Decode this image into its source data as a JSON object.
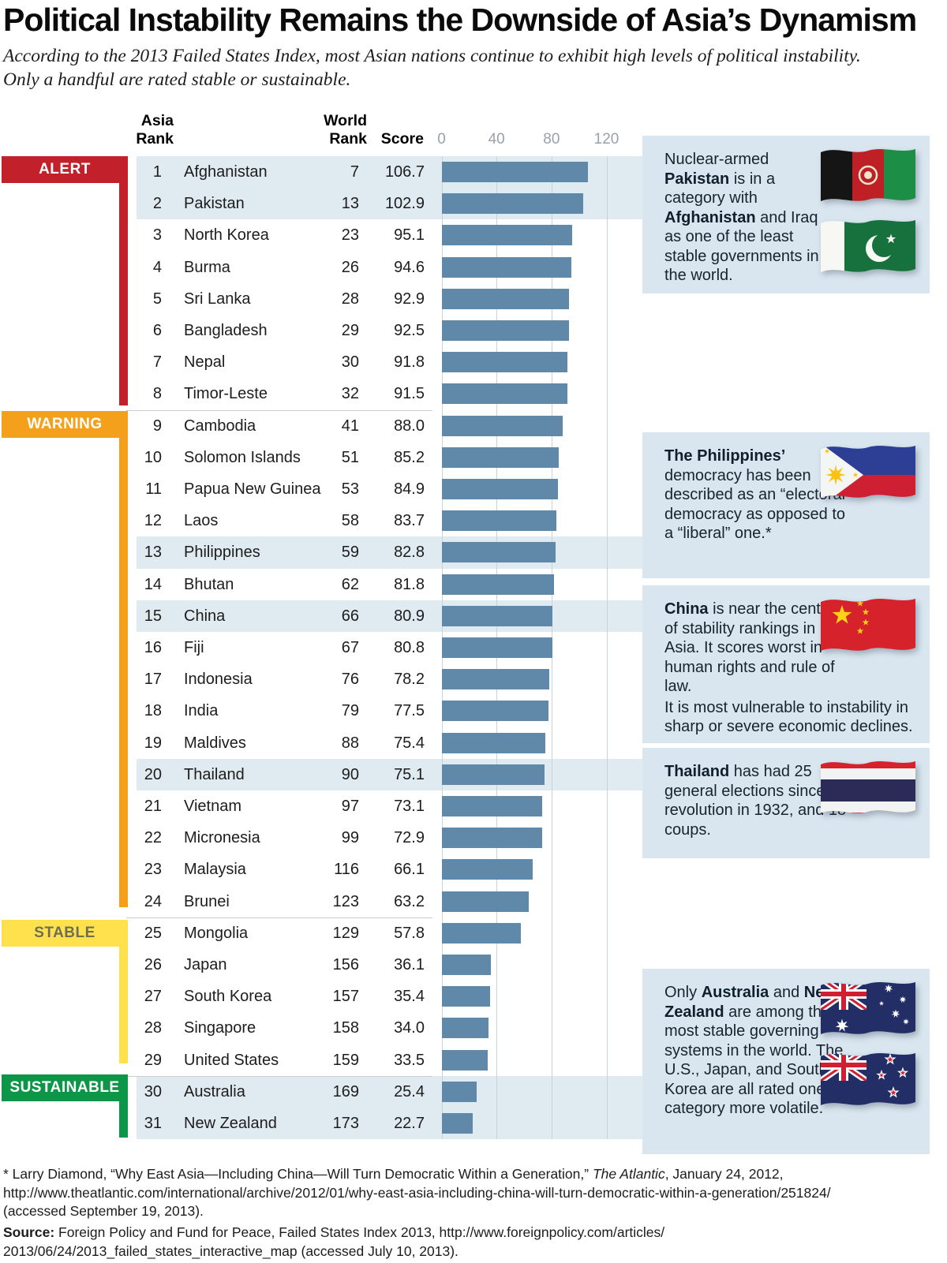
{
  "header": {
    "title": "Political Instability Remains the Downside of Asia’s Dynamism",
    "subtitle_lines": [
      "According to the 2013 Failed States Index, most Asian nations continue to exhibit high levels of political instability.",
      "Only a handful are rated stable or sustainable."
    ]
  },
  "table": {
    "col_headers": {
      "asia_line1": "Asia",
      "asia_line2": "Rank",
      "world_line1": "World",
      "world_line2": "Rank",
      "score": "Score"
    },
    "rows": [
      {
        "rank": "1",
        "country": "Afghanistan",
        "world_rank": "7",
        "score": "106.7",
        "category": "alert",
        "highlight": true
      },
      {
        "rank": "2",
        "country": "Pakistan",
        "world_rank": "13",
        "score": "102.9",
        "category": "alert",
        "highlight": true
      },
      {
        "rank": "3",
        "country": "North Korea",
        "world_rank": "23",
        "score": "95.1",
        "category": "alert",
        "highlight": false
      },
      {
        "rank": "4",
        "country": "Burma",
        "world_rank": "26",
        "score": "94.6",
        "category": "alert",
        "highlight": false
      },
      {
        "rank": "5",
        "country": "Sri Lanka",
        "world_rank": "28",
        "score": "92.9",
        "category": "alert",
        "highlight": false
      },
      {
        "rank": "6",
        "country": "Bangladesh",
        "world_rank": "29",
        "score": "92.5",
        "category": "alert",
        "highlight": false
      },
      {
        "rank": "7",
        "country": "Nepal",
        "world_rank": "30",
        "score": "91.8",
        "category": "alert",
        "highlight": false
      },
      {
        "rank": "8",
        "country": "Timor-Leste",
        "world_rank": "32",
        "score": "91.5",
        "category": "alert",
        "highlight": false
      },
      {
        "rank": "9",
        "country": "Cambodia",
        "world_rank": "41",
        "score": "88.0",
        "category": "warning",
        "highlight": false
      },
      {
        "rank": "10",
        "country": "Solomon Islands",
        "world_rank": "51",
        "score": "85.2",
        "category": "warning",
        "highlight": false
      },
      {
        "rank": "11",
        "country": "Papua New Guinea",
        "world_rank": "53",
        "score": "84.9",
        "category": "warning",
        "highlight": false
      },
      {
        "rank": "12",
        "country": "Laos",
        "world_rank": "58",
        "score": "83.7",
        "category": "warning",
        "highlight": false
      },
      {
        "rank": "13",
        "country": "Philippines",
        "world_rank": "59",
        "score": "82.8",
        "category": "warning",
        "highlight": true
      },
      {
        "rank": "14",
        "country": "Bhutan",
        "world_rank": "62",
        "score": "81.8",
        "category": "warning",
        "highlight": false
      },
      {
        "rank": "15",
        "country": "China",
        "world_rank": "66",
        "score": "80.9",
        "category": "warning",
        "highlight": true
      },
      {
        "rank": "16",
        "country": "Fiji",
        "world_rank": "67",
        "score": "80.8",
        "category": "warning",
        "highlight": false
      },
      {
        "rank": "17",
        "country": "Indonesia",
        "world_rank": "76",
        "score": "78.2",
        "category": "warning",
        "highlight": false
      },
      {
        "rank": "18",
        "country": "India",
        "world_rank": "79",
        "score": "77.5",
        "category": "warning",
        "highlight": false
      },
      {
        "rank": "19",
        "country": "Maldives",
        "world_rank": "88",
        "score": "75.4",
        "category": "warning",
        "highlight": false
      },
      {
        "rank": "20",
        "country": "Thailand",
        "world_rank": "90",
        "score": "75.1",
        "category": "warning",
        "highlight": true
      },
      {
        "rank": "21",
        "country": "Vietnam",
        "world_rank": "97",
        "score": "73.1",
        "category": "warning",
        "highlight": false
      },
      {
        "rank": "22",
        "country": "Micronesia",
        "world_rank": "99",
        "score": "72.9",
        "category": "warning",
        "highlight": false
      },
      {
        "rank": "23",
        "country": "Malaysia",
        "world_rank": "116",
        "score": "66.1",
        "category": "warning",
        "highlight": false
      },
      {
        "rank": "24",
        "country": "Brunei",
        "world_rank": "123",
        "score": "63.2",
        "category": "warning",
        "highlight": false
      },
      {
        "rank": "25",
        "country": "Mongolia",
        "world_rank": "129",
        "score": "57.8",
        "category": "stable",
        "highlight": false
      },
      {
        "rank": "26",
        "country": "Japan",
        "world_rank": "156",
        "score": "36.1",
        "category": "stable",
        "highlight": false
      },
      {
        "rank": "27",
        "country": "South Korea",
        "world_rank": "157",
        "score": "35.4",
        "category": "stable",
        "highlight": false
      },
      {
        "rank": "28",
        "country": "Singapore",
        "world_rank": "158",
        "score": "34.0",
        "category": "stable",
        "highlight": false
      },
      {
        "rank": "29",
        "country": "United States",
        "world_rank": "159",
        "score": "33.5",
        "category": "stable",
        "highlight": false
      },
      {
        "rank": "30",
        "country": "Australia",
        "world_rank": "169",
        "score": "25.4",
        "category": "sustainable",
        "highlight": true
      },
      {
        "rank": "31",
        "country": "New Zealand",
        "world_rank": "173",
        "score": "22.7",
        "category": "sustainable",
        "highlight": true
      }
    ]
  },
  "categories": [
    {
      "id": "alert",
      "label": "ALERT",
      "color": "#c2202a",
      "label_color": "#ffffff"
    },
    {
      "id": "warning",
      "label": "WARNING",
      "color": "#f5a01d",
      "label_color": "#ffffff"
    },
    {
      "id": "stable",
      "label": "STABLE",
      "color": "#ffe14e",
      "label_color": "#6e6e52"
    },
    {
      "id": "sustainable",
      "label": "SUSTAINABLE",
      "color": "#0d9648",
      "label_color": "#ffffff"
    }
  ],
  "callouts": [
    {
      "id": "pakistan-callout",
      "flags": [
        "afghanistan",
        "pakistan"
      ],
      "segments": [
        {
          "text": "Nuclear-armed ",
          "bold": false
        },
        {
          "text": "Pakistan",
          "bold": true
        },
        {
          "text": " is in a category with ",
          "bold": false
        },
        {
          "text": "Afghanistan",
          "bold": true
        },
        {
          "text": " and Iraq as one of the least stable governments in the world.",
          "bold": false
        }
      ]
    },
    {
      "id": "philippines-callout",
      "flags": [
        "philippines"
      ],
      "segments": [
        {
          "text": "The Philippines’",
          "bold": true
        },
        {
          "text": " democracy has been described as an “electoral” democracy as opposed to a “liberal” one.*",
          "bold": false
        }
      ]
    },
    {
      "id": "china-callout",
      "flags": [
        "china"
      ],
      "segments": [
        {
          "text": "China",
          "bold": true
        },
        {
          "text": " is near the center of stability rankings in Asia. It scores worst in human rights and rule of law.",
          "bold": false
        }
      ],
      "segments2": [
        {
          "text": "It is most vulnerable to instability in sharp or severe economic declines.",
          "bold": false
        }
      ]
    },
    {
      "id": "thailand-callout",
      "flags": [
        "thailand"
      ],
      "segments": [
        {
          "text": "Thailand",
          "bold": true
        },
        {
          "text": " has had 25 general elections since its revolution in 1932, and 18 coups.",
          "bold": false
        }
      ]
    },
    {
      "id": "australia-nz-callout",
      "flags": [
        "australia",
        "new_zealand"
      ],
      "segments": [
        {
          "text": "Only ",
          "bold": false
        },
        {
          "text": "Australia",
          "bold": true
        },
        {
          "text": " and ",
          "bold": false
        },
        {
          "text": "New Zealand",
          "bold": true
        },
        {
          "text": " are among the most stable governing systems in the world. The U.S., Japan, and South Korea are all rated one category more volatile.",
          "bold": false
        }
      ]
    }
  ],
  "footnote_segments": [
    {
      "text": "* Larry Diamond, “Why East Asia—Including China—Will Turn Democratic Within a Generation,” ",
      "style": "normal"
    },
    {
      "text": "The Atlantic",
      "style": "italic"
    },
    {
      "text": ", January 24, 2012,\nhttp://www.theatlantic.com/international/archive/2012/01/why-east-asia-including-china-will-turn-democratic-within-a-generation/251824/\n(accessed September 19, 2013).",
      "style": "normal"
    }
  ],
  "source_segments": [
    {
      "text": "Source:",
      "style": "bold"
    },
    {
      "text": " Foreign Policy and Fund for Peace, Failed States Index 2013, http://www.foreignpolicy.com/articles/\n2013/06/24/2013_failed_states_interactive_map (accessed July 10, 2013).",
      "style": "normal"
    }
  ],
  "colors": {
    "bar": "#6089a9",
    "highlight_band": "#e0eaf1",
    "callout_box": "#d9e6ef",
    "gridline": "#c9d2d8",
    "axis_label": "#99a2a9"
  },
  "chart_data": {
    "type": "bar",
    "orientation": "horizontal",
    "title": "Political Instability Remains the Downside of Asia’s Dynamism",
    "value_label": "Score",
    "x_ticks": [
      0,
      40,
      80,
      120
    ],
    "xlim": [
      0,
      135
    ],
    "categories": [
      "Afghanistan",
      "Pakistan",
      "North Korea",
      "Burma",
      "Sri Lanka",
      "Bangladesh",
      "Nepal",
      "Timor-Leste",
      "Cambodia",
      "Solomon Islands",
      "Papua New Guinea",
      "Laos",
      "Philippines",
      "Bhutan",
      "China",
      "Fiji",
      "Indonesia",
      "India",
      "Maldives",
      "Thailand",
      "Vietnam",
      "Micronesia",
      "Malaysia",
      "Brunei",
      "Mongolia",
      "Japan",
      "South Korea",
      "Singapore",
      "United States",
      "Australia",
      "New Zealand"
    ],
    "values": [
      106.7,
      102.9,
      95.1,
      94.6,
      92.9,
      92.5,
      91.8,
      91.5,
      88.0,
      85.2,
      84.9,
      83.7,
      82.8,
      81.8,
      80.9,
      80.8,
      78.2,
      77.5,
      75.4,
      75.1,
      73.1,
      72.9,
      66.1,
      63.2,
      57.8,
      36.1,
      35.4,
      34.0,
      33.5,
      25.4,
      22.7
    ],
    "world_ranks": [
      7,
      13,
      23,
      26,
      28,
      29,
      30,
      32,
      41,
      51,
      53,
      58,
      59,
      62,
      66,
      67,
      76,
      79,
      88,
      90,
      97,
      99,
      116,
      123,
      129,
      156,
      157,
      158,
      159,
      169,
      173
    ],
    "asia_ranks": [
      1,
      2,
      3,
      4,
      5,
      6,
      7,
      8,
      9,
      10,
      11,
      12,
      13,
      14,
      15,
      16,
      17,
      18,
      19,
      20,
      21,
      22,
      23,
      24,
      25,
      26,
      27,
      28,
      29,
      30,
      31
    ],
    "status_groups": {
      "ALERT": "ranks 1-8",
      "WARNING": "ranks 9-24",
      "STABLE": "ranks 25-29",
      "SUSTAINABLE": "ranks 30-31"
    },
    "highlighted": [
      "Afghanistan",
      "Pakistan",
      "Philippines",
      "China",
      "Thailand",
      "Australia",
      "New Zealand"
    ],
    "legend_position": "none",
    "grid": true
  }
}
